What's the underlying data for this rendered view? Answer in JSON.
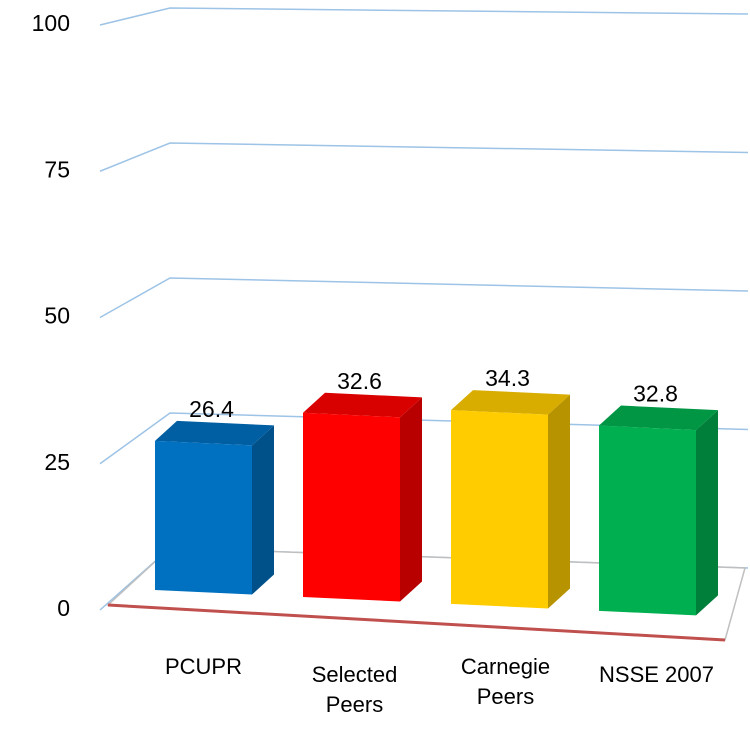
{
  "chart_data": {
    "type": "bar3d",
    "categories": [
      "PCUPR",
      "Selected Peers",
      "Carnegie Peers",
      "NSSE 2007"
    ],
    "values": [
      26.4,
      32.6,
      34.3,
      32.8
    ],
    "colors": [
      "#0070c0",
      "#ff0000",
      "#ffcc00",
      "#00b050"
    ],
    "ylim": [
      0,
      100
    ],
    "yticks": [
      0,
      25,
      50,
      75,
      100
    ],
    "grid": true
  }
}
